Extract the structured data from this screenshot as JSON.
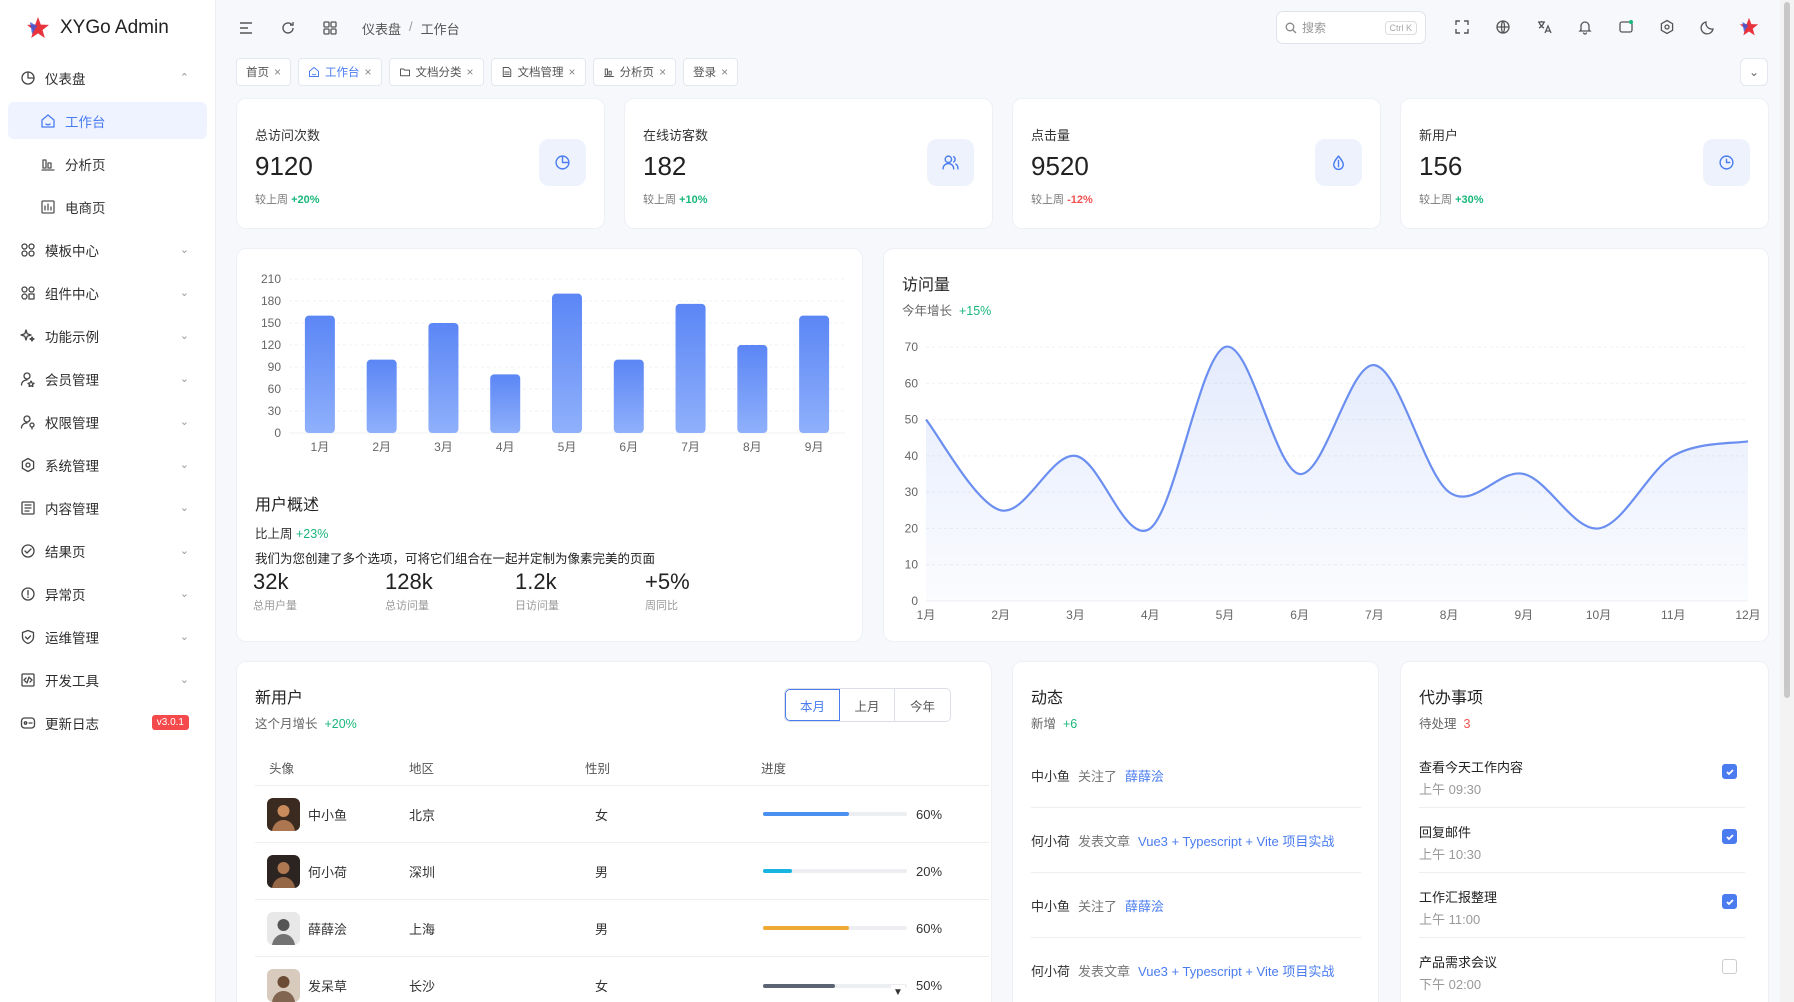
{
  "app": {
    "title": "XYGo Admin",
    "version_badge": "v3.0.1"
  },
  "sidebar": {
    "groups": [
      {
        "label": "仪表盘",
        "icon": "dashboard-icon",
        "expanded": true,
        "children": [
          {
            "label": "工作台",
            "icon": "home-icon",
            "active": true
          },
          {
            "label": "分析页",
            "icon": "analysis-icon"
          },
          {
            "label": "电商页",
            "icon": "ecommerce-icon"
          }
        ]
      },
      {
        "label": "模板中心",
        "icon": "template-icon"
      },
      {
        "label": "组件中心",
        "icon": "component-icon"
      },
      {
        "label": "功能示例",
        "icon": "sparkle-icon"
      },
      {
        "label": "会员管理",
        "icon": "member-icon"
      },
      {
        "label": "权限管理",
        "icon": "permission-icon"
      },
      {
        "label": "系统管理",
        "icon": "settings-icon"
      },
      {
        "label": "内容管理",
        "icon": "content-icon"
      },
      {
        "label": "结果页",
        "icon": "result-icon"
      },
      {
        "label": "异常页",
        "icon": "exception-icon"
      },
      {
        "label": "运维管理",
        "icon": "ops-icon"
      },
      {
        "label": "开发工具",
        "icon": "devtools-icon"
      },
      {
        "label": "更新日志",
        "icon": "changelog-icon"
      }
    ]
  },
  "header": {
    "breadcrumb": [
      "仪表盘",
      "工作台"
    ],
    "search_placeholder": "搜索",
    "search_shortcut": "Ctrl K"
  },
  "tabs": [
    {
      "label": "首页",
      "icon": ""
    },
    {
      "label": "工作台",
      "icon": "home-icon",
      "active": true
    },
    {
      "label": "文档分类",
      "icon": "folder-icon"
    },
    {
      "label": "文档管理",
      "icon": "document-icon"
    },
    {
      "label": "分析页",
      "icon": "analysis-icon"
    },
    {
      "label": "登录",
      "icon": ""
    }
  ],
  "stats": [
    {
      "label": "总访问次数",
      "value": "9120",
      "prefix": "较上周",
      "change": "+20%",
      "trend": "up",
      "icon": "pie-chart-icon"
    },
    {
      "label": "在线访客数",
      "value": "182",
      "prefix": "较上周",
      "change": "+10%",
      "trend": "up",
      "icon": "users-icon"
    },
    {
      "label": "点击量",
      "value": "9520",
      "prefix": "较上周",
      "change": "-12%",
      "trend": "down",
      "icon": "drop-icon"
    },
    {
      "label": "新用户",
      "value": "156",
      "prefix": "较上周",
      "change": "+30%",
      "trend": "up",
      "icon": "clock-icon"
    }
  ],
  "chart_data": [
    {
      "type": "bar",
      "categories": [
        "1月",
        "2月",
        "3月",
        "4月",
        "5月",
        "6月",
        "7月",
        "8月",
        "9月"
      ],
      "values": [
        160,
        100,
        150,
        80,
        190,
        100,
        176,
        120,
        160
      ],
      "ylim": [
        0,
        210
      ],
      "yticks": [
        0,
        30,
        60,
        90,
        120,
        150,
        180,
        210
      ],
      "title": "",
      "xlabel": "",
      "ylabel": "",
      "grid": true,
      "color": "#5b86f5"
    },
    {
      "type": "area",
      "title": "访问量",
      "categories": [
        "1月",
        "2月",
        "3月",
        "4月",
        "5月",
        "6月",
        "7月",
        "8月",
        "9月",
        "10月",
        "11月",
        "12月"
      ],
      "values": [
        50,
        25,
        40,
        20,
        70,
        35,
        65,
        30,
        35,
        20,
        40,
        44
      ],
      "ylim": [
        0,
        70
      ],
      "yticks": [
        0,
        10,
        20,
        30,
        40,
        50,
        60,
        70
      ],
      "xlabel": "",
      "ylabel": "",
      "grid": true,
      "color": "#6b8ff0"
    }
  ],
  "overview": {
    "title": "用户概述",
    "compare_prefix": "比上周",
    "compare_value": "+23%",
    "description": "我们为您创建了多个选项，可将它们组合在一起并定制为像素完美的页面",
    "metrics": [
      {
        "value": "32k",
        "label": "总用户量"
      },
      {
        "value": "128k",
        "label": "总访问量"
      },
      {
        "value": "1.2k",
        "label": "日访问量"
      },
      {
        "value": "+5%",
        "label": "周同比"
      }
    ]
  },
  "visits": {
    "subtitle_prefix": "今年增长",
    "subtitle_value": "+15%"
  },
  "new_users": {
    "title": "新用户",
    "subtitle_prefix": "这个月增长",
    "subtitle_value": "+20%",
    "filters": [
      "本月",
      "上月",
      "今年"
    ],
    "columns": [
      "头像",
      "地区",
      "性别",
      "进度"
    ],
    "rows": [
      {
        "name": "中小鱼",
        "region": "北京",
        "gender": "女",
        "progress": 60,
        "progress_label": "60%",
        "color": "#4a90f0"
      },
      {
        "name": "何小荷",
        "region": "深圳",
        "gender": "男",
        "progress": 20,
        "progress_label": "20%",
        "color": "#19b4e0"
      },
      {
        "name": "薛薛浍",
        "region": "上海",
        "gender": "男",
        "progress": 60,
        "progress_label": "60%",
        "color": "#f0a935"
      },
      {
        "name": "发呆草",
        "region": "长沙",
        "gender": "女",
        "progress": 50,
        "progress_label": "50%",
        "color": "#5b6472"
      }
    ]
  },
  "activity": {
    "title": "动态",
    "subtitle_prefix": "新增",
    "subtitle_value": "+6",
    "items": [
      {
        "who": "中小鱼",
        "verb": "关注了",
        "target": "薛薛浍"
      },
      {
        "who": "何小荷",
        "verb": "发表文章",
        "target": "Vue3 + Typescript + Vite 项目实战"
      },
      {
        "who": "中小鱼",
        "verb": "关注了",
        "target": "薛薛浍"
      },
      {
        "who": "何小荷",
        "verb": "发表文章",
        "target": "Vue3 + Typescript + Vite 项目实战"
      }
    ]
  },
  "todos": {
    "title": "代办事项",
    "subtitle_prefix": "待处理",
    "subtitle_value": "3",
    "items": [
      {
        "title": "查看今天工作内容",
        "time": "上午 09:30",
        "done": true
      },
      {
        "title": "回复邮件",
        "time": "上午 10:30",
        "done": true
      },
      {
        "title": "工作汇报整理",
        "time": "上午 11:00",
        "done": true
      },
      {
        "title": "产品需求会议",
        "time": "下午 02:00",
        "done": false
      }
    ]
  }
}
